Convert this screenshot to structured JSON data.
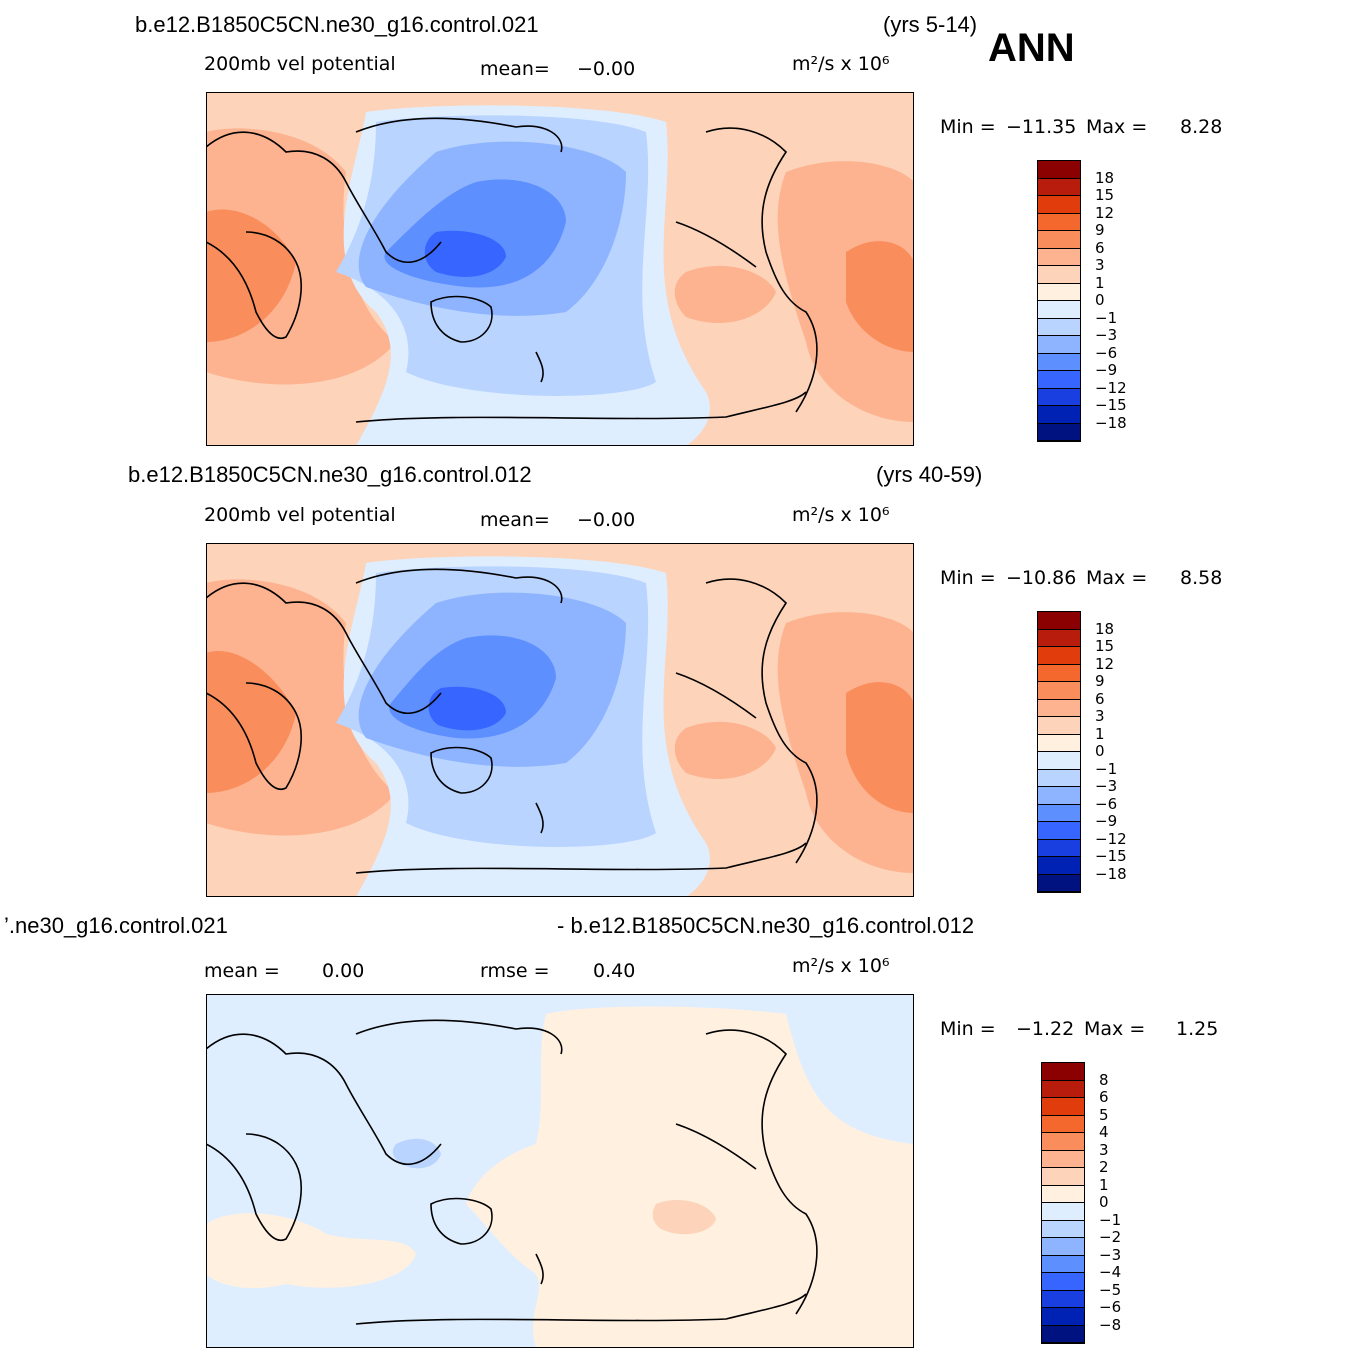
{
  "season": "ANN",
  "panels": [
    {
      "case": "b.e12.B1850C5CN.ne30_g16.control.021",
      "years": "(yrs 5-14)",
      "variable": "200mb  vel  potential",
      "mean_label": "mean=",
      "mean_value": "−0.00",
      "units": "m²/s  x  10⁶",
      "min_label": "Min  =",
      "min_value": "−11.35",
      "max_label": "Max  =",
      "max_value": "8.28",
      "colorbar": {
        "labels": [
          "18",
          "15",
          "12",
          "9",
          "6",
          "3",
          "1",
          "0",
          "−1",
          "−3",
          "−6",
          "−9",
          "−12",
          "−15",
          "−18"
        ],
        "colors": [
          "#8b0000",
          "#b71c0c",
          "#e03c0c",
          "#f4682e",
          "#f98e5c",
          "#fdb390",
          "#fdd3b9",
          "#fff0e0",
          "#dfeeff",
          "#b9d4ff",
          "#8fb4ff",
          "#5e8fff",
          "#3666ff",
          "#1a3fe0",
          "#0022b4",
          "#001280"
        ]
      }
    },
    {
      "case": "b.e12.B1850C5CN.ne30_g16.control.012",
      "years": "(yrs 40-59)",
      "variable": "200mb  vel  potential",
      "mean_label": "mean=",
      "mean_value": "−0.00",
      "units": "m²/s  x  10⁶",
      "min_label": "Min  =",
      "min_value": "−10.86",
      "max_label": "Max  =",
      "max_value": "8.58",
      "colorbar": {
        "labels": [
          "18",
          "15",
          "12",
          "9",
          "6",
          "3",
          "1",
          "0",
          "−1",
          "−3",
          "−6",
          "−9",
          "−12",
          "−15",
          "−18"
        ],
        "colors": [
          "#8b0000",
          "#b71c0c",
          "#e03c0c",
          "#f4682e",
          "#f98e5c",
          "#fdb390",
          "#fdd3b9",
          "#fff0e0",
          "#dfeeff",
          "#b9d4ff",
          "#8fb4ff",
          "#5e8fff",
          "#3666ff",
          "#1a3fe0",
          "#0022b4",
          "#001280"
        ]
      }
    },
    {
      "case_left": "’.ne30_g16.control.021",
      "case_right": "- b.e12.B1850C5CN.ne30_g16.control.012",
      "mean_label": "mean =",
      "mean_value": "0.00",
      "rmse_label": "rmse =",
      "rmse_value": "0.40",
      "units": "m²/s  x  10⁶",
      "min_label": "Min  =",
      "min_value": "−1.22",
      "max_label": "Max  =",
      "max_value": "1.25",
      "colorbar": {
        "labels": [
          "8",
          "6",
          "5",
          "4",
          "3",
          "2",
          "1",
          "0",
          "−1",
          "−2",
          "−3",
          "−4",
          "−5",
          "−6",
          "−8"
        ],
        "colors": [
          "#8b0000",
          "#b71c0c",
          "#e03c0c",
          "#f4682e",
          "#f98e5c",
          "#fdb390",
          "#fdd3b9",
          "#fff0e0",
          "#dfeeff",
          "#b9d4ff",
          "#8fb4ff",
          "#5e8fff",
          "#3666ff",
          "#1a3fe0",
          "#0022b4",
          "#001280"
        ]
      }
    }
  ]
}
